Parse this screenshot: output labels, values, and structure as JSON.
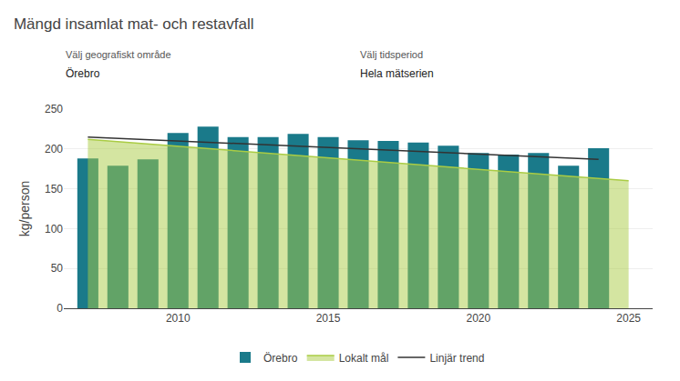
{
  "chart_data": {
    "type": "bar",
    "title": "Mängd insamlat mat- och restavfall",
    "ylabel": "kg/person",
    "annotations": [
      "Välj geografiskt område",
      "Örebro",
      "Välj tidsperiod",
      "Hela mätserien"
    ],
    "series": [
      {
        "name": "Örebro",
        "type": "bar",
        "color": "#1a7a8a",
        "x": [
          2007,
          2008,
          2009,
          2010,
          2011,
          2012,
          2013,
          2014,
          2015,
          2016,
          2017,
          2018,
          2019,
          2020,
          2021,
          2022,
          2023,
          2024
        ],
        "values": [
          188,
          179,
          187,
          220,
          228,
          215,
          215,
          219,
          215,
          211,
          210,
          208,
          204,
          195,
          193,
          195,
          179,
          201
        ]
      },
      {
        "name": "Lokalt mål",
        "type": "area",
        "color": "#aacc44",
        "x": [
          2007,
          2025
        ],
        "values": [
          212,
          160
        ]
      },
      {
        "name": "Linjär trend",
        "type": "line",
        "color": "#333333",
        "x": [
          2007,
          2024
        ],
        "values": [
          215,
          187
        ]
      }
    ],
    "xlim": [
      2006.2,
      2025.8
    ],
    "xticks": [
      2010,
      2015,
      2020,
      2025
    ],
    "ylim": [
      0,
      250
    ],
    "yticks": [
      0,
      50,
      100,
      150,
      200,
      250
    ],
    "grid": "y",
    "legend": "bottom"
  }
}
